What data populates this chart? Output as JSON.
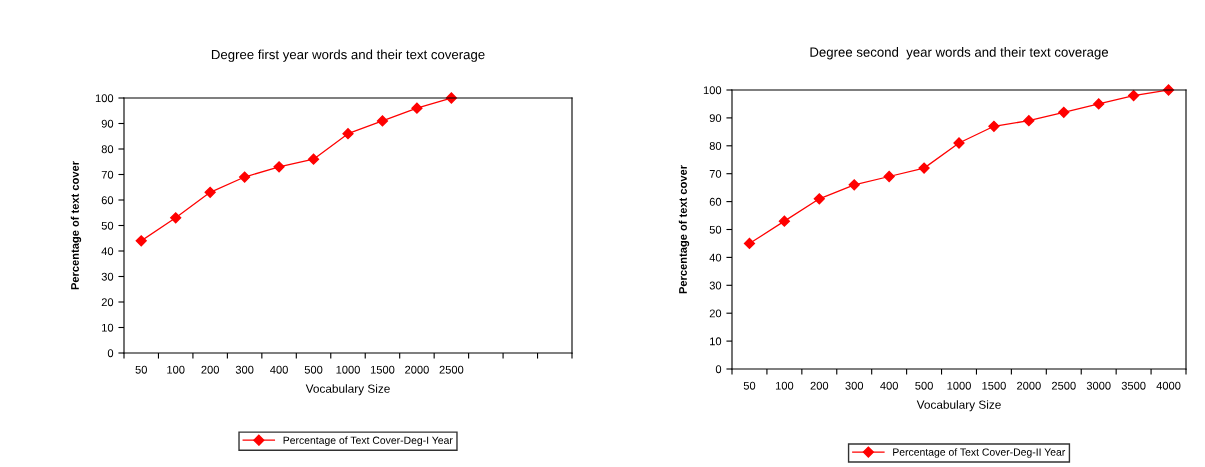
{
  "chart_data": [
    {
      "type": "line",
      "title": "Degree first year words and their text coverage",
      "xlabel": "Vocabulary Size",
      "ylabel": "Percentage of text cover",
      "categories": [
        "50",
        "100",
        "200",
        "300",
        "400",
        "500",
        "1000",
        "1500",
        "2000",
        "2500",
        null,
        null,
        null
      ],
      "series": [
        {
          "name": "Percentage of Text Cover-Deg-I Year",
          "color": "#ff0000",
          "values": [
            44,
            53,
            63,
            69,
            73,
            76,
            86,
            91,
            96,
            100,
            null,
            null,
            null
          ]
        }
      ],
      "ylim": [
        0,
        100
      ],
      "yticks": [
        0,
        10,
        20,
        30,
        40,
        50,
        60,
        70,
        80,
        90,
        100
      ],
      "grid": false,
      "legend": "bottom",
      "marker": "diamond",
      "line_style": "solid"
    },
    {
      "type": "line",
      "title": "Degree second  year words and their text coverage",
      "xlabel": "Vocabulary Size",
      "ylabel": "Percentage of text cover",
      "categories": [
        "50",
        "100",
        "200",
        "300",
        "400",
        "500",
        "1000",
        "1500",
        "2000",
        "2500",
        "3000",
        "3500",
        "4000"
      ],
      "series": [
        {
          "name": "Percentage of Text Cover-Deg-II Year",
          "color": "#ff0000",
          "values": [
            45,
            53,
            61,
            66,
            69,
            72,
            81,
            87,
            89,
            92,
            95,
            98,
            100
          ]
        }
      ],
      "ylim": [
        0,
        100
      ],
      "yticks": [
        0,
        10,
        20,
        30,
        40,
        50,
        60,
        70,
        80,
        90,
        100
      ],
      "grid": false,
      "legend": "bottom",
      "marker": "diamond",
      "line_style": "solid"
    }
  ]
}
